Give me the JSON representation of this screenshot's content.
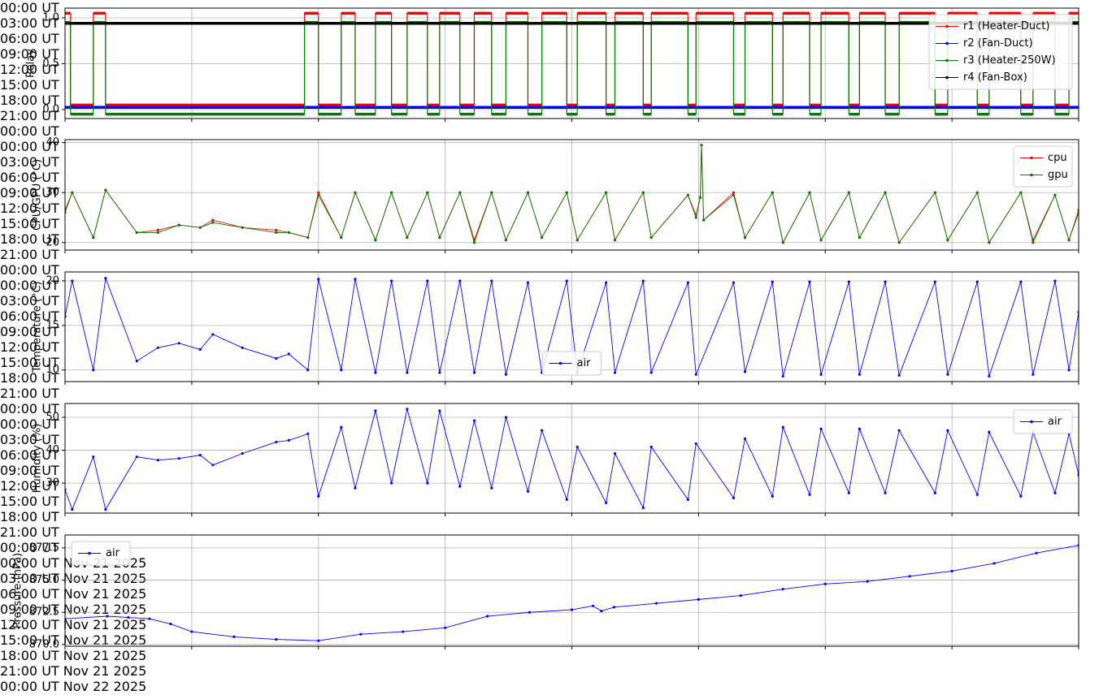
{
  "chart_data": [
    {
      "type": "line",
      "step": "post",
      "ylabel": "Relay",
      "legend": "upper right",
      "grid": true,
      "x": [
        0,
        0.13,
        0.67,
        0.96,
        5.67,
        6.0,
        6.54,
        6.87,
        7.35,
        7.73,
        8.1,
        8.58,
        8.87,
        9.35,
        9.69,
        10.1,
        10.44,
        10.96,
        11.29,
        11.88,
        12.13,
        12.81,
        13.02,
        13.69,
        13.88,
        14.75,
        14.94,
        15.83,
        16.1,
        16.75,
        17.0,
        17.63,
        17.9,
        18.56,
        18.81,
        19.42,
        19.75,
        20.6,
        20.9,
        21.6,
        21.88,
        22.63,
        22.92,
        23.44,
        23.77,
        24
      ],
      "series": [
        {
          "name": "r1 (Heater-Duct)",
          "color": "#ff0000",
          "values": [
            1.05,
            0.05,
            1.05,
            0.05,
            1.05,
            0.05,
            1.05,
            0.05,
            1.05,
            0.05,
            1.05,
            0.05,
            1.05,
            0.05,
            1.05,
            0.05,
            1.05,
            0.05,
            1.05,
            0.05,
            1.05,
            0.05,
            1.05,
            0.05,
            1.05,
            0.05,
            1.05,
            0.05,
            1.05,
            0.05,
            1.05,
            0.05,
            1.05,
            0.05,
            1.05,
            0.05,
            1.05,
            0.05,
            1.05,
            0.05,
            1.05,
            0.05,
            1.05,
            0.05,
            1.05,
            1.05
          ]
        },
        {
          "name": "r2 (Fan-Duct)",
          "color": "#0000ff",
          "values": [
            0.025,
            0.025,
            0.025,
            0.025,
            0.025,
            0.025,
            0.025,
            0.025,
            0.025,
            0.025,
            0.025,
            0.025,
            0.025,
            0.025,
            0.025,
            0.025,
            0.025,
            0.025,
            0.025,
            0.025,
            0.025,
            0.025,
            0.025,
            0.025,
            0.025,
            0.025,
            0.025,
            0.025,
            0.025,
            0.025,
            0.025,
            0.025,
            0.025,
            0.025,
            0.025,
            0.025,
            0.025,
            0.025,
            0.025,
            0.025,
            0.025,
            0.025,
            0.025,
            0.025,
            0.025,
            0.025
          ]
        },
        {
          "name": "r3 (Heater-250W)",
          "color": "#008000",
          "values": [
            0.95,
            -0.05,
            0.95,
            -0.05,
            0.95,
            -0.05,
            0.95,
            -0.05,
            0.95,
            -0.05,
            0.95,
            -0.05,
            0.95,
            -0.05,
            0.95,
            -0.05,
            0.95,
            -0.05,
            0.95,
            -0.05,
            0.95,
            -0.05,
            0.95,
            -0.05,
            0.95,
            -0.05,
            0.95,
            -0.05,
            0.95,
            -0.05,
            0.95,
            -0.05,
            0.95,
            -0.05,
            0.95,
            -0.05,
            0.95,
            -0.05,
            0.95,
            -0.05,
            0.95,
            -0.05,
            0.95,
            -0.05,
            0.95,
            0.95
          ]
        },
        {
          "name": "r4 (Fan-Box)",
          "color": "#000000",
          "values": [
            0.94,
            0.94,
            0.94,
            0.94,
            0.94,
            0.94,
            0.94,
            0.94,
            0.94,
            0.94,
            0.94,
            0.94,
            0.94,
            0.94,
            0.94,
            0.94,
            0.94,
            0.94,
            0.94,
            0.94,
            0.94,
            0.94,
            0.94,
            0.94,
            0.94,
            0.94,
            0.94,
            0.94,
            0.94,
            0.94,
            0.94,
            0.94,
            0.94,
            0.94,
            0.94,
            0.94,
            0.94,
            0.94,
            0.94,
            0.94,
            0.94,
            0.94,
            0.94,
            0.94,
            0.94,
            0.94
          ]
        }
      ],
      "xlim": [
        0,
        24
      ],
      "ylim": [
        -0.097,
        1.106
      ],
      "yticks": [
        {
          "value": 0,
          "label": "0.0"
        },
        {
          "value": 0.5,
          "label": "0.5"
        },
        {
          "value": 1,
          "label": "1.0"
        }
      ],
      "xticks": [
        {
          "value": 0,
          "label": "00:00 UT"
        },
        {
          "value": 3,
          "label": "03:00 UT"
        },
        {
          "value": 6,
          "label": "06:00 UT"
        },
        {
          "value": 9,
          "label": "09:00 UT"
        },
        {
          "value": 12,
          "label": "12:00 UT"
        },
        {
          "value": 15,
          "label": "15:00 UT"
        },
        {
          "value": 18,
          "label": "18:00 UT"
        },
        {
          "value": 21,
          "label": "21:00 UT"
        },
        {
          "value": 24,
          "label": "00:00 UT"
        }
      ]
    },
    {
      "type": "line",
      "ylabel": "CPU/GPU (°C)",
      "legend": "upper right",
      "grid": true,
      "x": [
        0,
        0.17,
        0.67,
        0.96,
        1.7,
        2.2,
        2.7,
        3.2,
        3.5,
        4.2,
        5.0,
        5.3,
        5.75,
        6.0,
        6.54,
        6.87,
        7.35,
        7.73,
        8.1,
        8.58,
        8.87,
        9.35,
        9.69,
        10.1,
        10.44,
        10.96,
        11.29,
        11.88,
        12.13,
        12.81,
        13.02,
        13.69,
        13.88,
        14.75,
        14.94,
        15.04,
        15.07,
        15.12,
        15.83,
        16.1,
        16.75,
        17.0,
        17.63,
        17.9,
        18.56,
        18.81,
        19.42,
        19.75,
        20.6,
        20.9,
        21.6,
        21.88,
        22.63,
        22.92,
        23.44,
        23.77,
        24
      ],
      "series": [
        {
          "name": "cpu",
          "color": "#ff0000",
          "values": [
            26.5,
            30,
            21,
            30.5,
            22,
            22.5,
            23.5,
            23,
            24.5,
            23,
            22.5,
            22,
            21,
            30,
            21,
            30,
            20.5,
            30,
            21,
            30,
            21,
            30,
            20.5,
            30,
            20.5,
            30,
            21,
            30,
            20.5,
            30,
            20.5,
            30,
            21,
            29.5,
            25.5,
            29,
            39.5,
            24.5,
            30,
            21,
            30,
            20,
            30,
            20.5,
            30,
            21,
            30,
            20,
            30,
            20.5,
            30,
            20,
            30,
            20,
            29.5,
            20.5,
            26.5
          ]
        },
        {
          "name": "gpu",
          "color": "#008000",
          "values": [
            26,
            30,
            21,
            30.5,
            22,
            22,
            23.5,
            23,
            24,
            23,
            22,
            22,
            21,
            29.5,
            21,
            30,
            20.5,
            30,
            21,
            30,
            21,
            30,
            20,
            30,
            20.5,
            30,
            21,
            30,
            20.5,
            30,
            20.5,
            30,
            21,
            29.5,
            25,
            29,
            39.5,
            24.5,
            29.5,
            21,
            30,
            20,
            30,
            20.5,
            30,
            21,
            30,
            20,
            30,
            20.5,
            30,
            20,
            30,
            20.5,
            29.5,
            20.5,
            26
          ]
        }
      ],
      "xlim": [
        0,
        24
      ],
      "ylim": [
        18.5,
        40.6
      ],
      "yticks": [
        20,
        30,
        40
      ],
      "xticks": [
        {
          "value": 0,
          "label": "00:00 UT"
        },
        {
          "value": 3,
          "label": "03:00 UT"
        },
        {
          "value": 6,
          "label": "06:00 UT"
        },
        {
          "value": 9,
          "label": "09:00 UT"
        },
        {
          "value": 12,
          "label": "12:00 UT"
        },
        {
          "value": 15,
          "label": "15:00 UT"
        },
        {
          "value": 18,
          "label": "18:00 UT"
        },
        {
          "value": 21,
          "label": "21:00 UT"
        },
        {
          "value": 24,
          "label": "00:00 UT"
        }
      ]
    },
    {
      "type": "line",
      "ylabel": "Temperature (°C)",
      "legend": "lower center",
      "grid": true,
      "x": [
        0,
        0.17,
        0.67,
        0.96,
        1.7,
        2.2,
        2.7,
        3.2,
        3.5,
        4.2,
        5.0,
        5.3,
        5.75,
        6.0,
        6.54,
        6.87,
        7.35,
        7.73,
        8.1,
        8.58,
        8.87,
        9.35,
        9.69,
        10.1,
        10.44,
        10.96,
        11.29,
        11.88,
        12.13,
        12.81,
        13.02,
        13.69,
        13.88,
        14.75,
        14.94,
        15.83,
        16.1,
        16.75,
        17.0,
        17.63,
        17.9,
        18.56,
        18.81,
        19.42,
        19.75,
        20.6,
        20.9,
        21.6,
        21.88,
        22.63,
        22.92,
        23.44,
        23.77,
        24
      ],
      "series": [
        {
          "name": "air",
          "color": "#0000ff",
          "values": [
            16,
            20,
            10,
            20.3,
            11,
            12.5,
            13,
            12.3,
            14,
            12.5,
            11.3,
            11.8,
            10,
            20.2,
            10,
            20.2,
            9.7,
            20,
            9.7,
            20,
            9.7,
            20,
            9.7,
            20,
            9.5,
            19.8,
            9.7,
            20,
            9.7,
            19.8,
            9.7,
            20,
            9.7,
            19.8,
            9.5,
            19.8,
            9.8,
            19.9,
            9.3,
            19.9,
            9.5,
            19.9,
            9.5,
            19.9,
            9.4,
            19.9,
            9.5,
            19.9,
            9.3,
            19.9,
            9.5,
            20,
            10,
            16.5
          ]
        }
      ],
      "xlim": [
        0,
        24
      ],
      "ylim": [
        8.7,
        21.0
      ],
      "yticks": [
        10,
        15,
        20
      ],
      "xticks": [
        {
          "value": 0,
          "label": "00:00 UT"
        },
        {
          "value": 3,
          "label": "03:00 UT"
        },
        {
          "value": 6,
          "label": "06:00 UT"
        },
        {
          "value": 9,
          "label": "09:00 UT"
        },
        {
          "value": 12,
          "label": "12:00 UT"
        },
        {
          "value": 15,
          "label": "15:00 UT"
        },
        {
          "value": 18,
          "label": "18:00 UT"
        },
        {
          "value": 21,
          "label": "21:00 UT"
        },
        {
          "value": 24,
          "label": "00:00 UT"
        }
      ]
    },
    {
      "type": "line",
      "ylabel": "Humidity (%)",
      "legend": "upper right",
      "grid": true,
      "x": [
        0,
        0.17,
        0.67,
        0.96,
        1.7,
        2.2,
        2.7,
        3.2,
        3.5,
        4.2,
        5.0,
        5.3,
        5.75,
        6.0,
        6.54,
        6.87,
        7.35,
        7.73,
        8.1,
        8.58,
        8.87,
        9.35,
        9.69,
        10.1,
        10.44,
        10.96,
        11.29,
        11.88,
        12.13,
        12.81,
        13.02,
        13.69,
        13.88,
        14.75,
        14.94,
        15.83,
        16.1,
        16.75,
        17.0,
        17.63,
        17.9,
        18.56,
        18.81,
        19.42,
        19.75,
        20.6,
        20.9,
        21.6,
        21.88,
        22.63,
        22.92,
        23.44,
        23.77,
        24
      ],
      "series": [
        {
          "name": "air",
          "color": "#0000ff",
          "values": [
            28,
            22,
            38,
            22,
            38,
            37,
            37.5,
            38.5,
            35.5,
            39,
            42.5,
            43,
            45,
            26,
            47,
            28.5,
            52,
            30,
            52.5,
            30,
            52,
            29,
            49,
            28.5,
            50,
            27.5,
            46,
            25,
            41,
            24,
            39,
            22.5,
            41,
            25,
            42,
            25.5,
            43.5,
            26,
            47,
            26.5,
            46.5,
            27,
            46.5,
            27,
            46,
            27,
            46,
            26.5,
            45.5,
            26,
            45.5,
            27,
            45,
            32.5
          ]
        }
      ],
      "xlim": [
        0,
        24
      ],
      "ylim": [
        20.9,
        54.2
      ],
      "yticks": [
        30,
        40,
        50
      ],
      "xticks": [
        {
          "value": 0,
          "label": "00:00 UT"
        },
        {
          "value": 3,
          "label": "03:00 UT"
        },
        {
          "value": 6,
          "label": "06:00 UT"
        },
        {
          "value": 9,
          "label": "09:00 UT"
        },
        {
          "value": 12,
          "label": "12:00 UT"
        },
        {
          "value": 15,
          "label": "15:00 UT"
        },
        {
          "value": 18,
          "label": "18:00 UT"
        },
        {
          "value": 21,
          "label": "21:00 UT"
        },
        {
          "value": 24,
          "label": "00:00 UT"
        }
      ]
    },
    {
      "type": "line",
      "ylabel": "Pressure (hPa)",
      "legend": "upper left",
      "grid": true,
      "x": [
        0,
        1,
        1.5,
        2,
        2.5,
        3,
        4,
        5,
        6,
        7,
        8,
        9,
        10,
        11,
        12,
        12.5,
        12.7,
        13,
        14,
        15,
        16,
        17,
        18,
        19,
        20,
        21,
        22,
        23,
        24
      ],
      "series": [
        {
          "name": "air",
          "color": "#0000ff",
          "values": [
            872.0,
            872.2,
            872.1,
            872.0,
            871.6,
            871.0,
            870.6,
            870.4,
            870.3,
            870.8,
            871.0,
            871.3,
            872.2,
            872.5,
            872.7,
            873.0,
            872.6,
            872.9,
            873.2,
            873.5,
            873.8,
            874.3,
            874.7,
            874.9,
            875.3,
            875.7,
            876.3,
            877.1,
            877.7
          ]
        }
      ],
      "xlim": [
        0,
        24
      ],
      "ylim": [
        869.87,
        878.5
      ],
      "yticks": [
        {
          "value": 870,
          "label": "870.0"
        },
        {
          "value": 872.5,
          "label": "872.5"
        },
        {
          "value": 875,
          "label": "875.0"
        },
        {
          "value": 877.5,
          "label": "877.5"
        }
      ],
      "xticks": [
        {
          "value": 0,
          "label": "00:00 UT\nNov 21\n2025"
        },
        {
          "value": 3,
          "label": "03:00 UT\nNov 21\n2025"
        },
        {
          "value": 6,
          "label": "06:00 UT\nNov 21\n2025"
        },
        {
          "value": 9,
          "label": "09:00 UT\nNov 21\n2025"
        },
        {
          "value": 12,
          "label": "12:00 UT\nNov 21\n2025"
        },
        {
          "value": 15,
          "label": "15:00 UT\nNov 21\n2025"
        },
        {
          "value": 18,
          "label": "18:00 UT\nNov 21\n2025"
        },
        {
          "value": 21,
          "label": "21:00 UT\nNov 21\n2025"
        },
        {
          "value": 24,
          "label": "00:00 UT\nNov 22\n2025"
        }
      ]
    }
  ]
}
